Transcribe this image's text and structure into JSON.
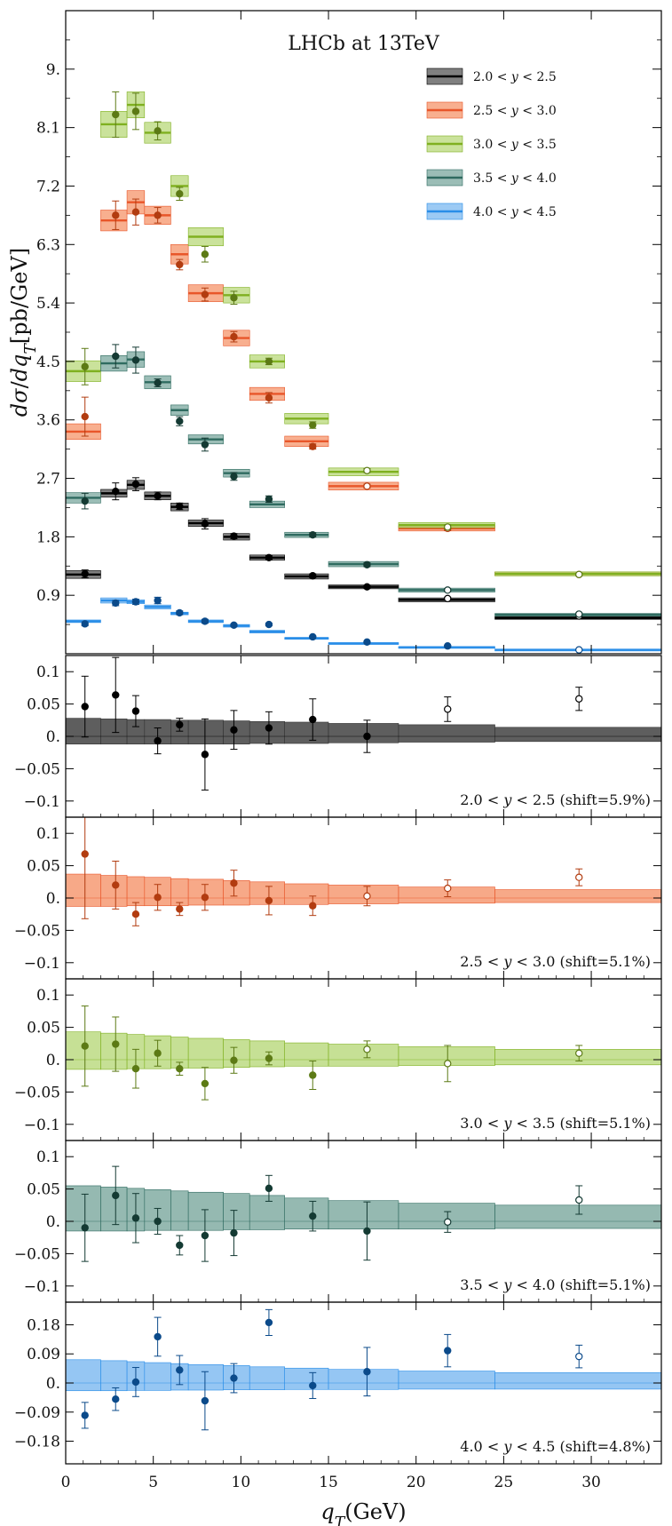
{
  "chart_data": {
    "type": "scatter",
    "title": "LHCb at 13TeV",
    "xlabel": "q_T(GeV)",
    "xlim": [
      0,
      34
    ],
    "xticks": [
      0,
      5,
      10,
      15,
      20,
      25,
      30
    ],
    "bin_edges": [
      0,
      2,
      3.5,
      4.5,
      6,
      7,
      9,
      10.5,
      12.5,
      15,
      19,
      24.5,
      34
    ],
    "bin_points": [
      1.1,
      2.85,
      4.0,
      5.25,
      6.5,
      7.95,
      9.6,
      11.6,
      14.1,
      17.2,
      21.8,
      29.3
    ],
    "main": {
      "ylabel": "dσ/dq_T[pb/GeV]",
      "ylim": [
        0,
        9.9
      ],
      "yticks": [
        "0.9",
        "1.8",
        "2.7",
        "3.6",
        "4.5",
        "5.4",
        "6.3",
        "7.2",
        "8.1",
        "9."
      ],
      "ytick_values": [
        0.9,
        1.8,
        2.7,
        3.6,
        4.5,
        5.4,
        6.3,
        7.2,
        8.1,
        9.0
      ]
    },
    "series": [
      {
        "name": "2.0 < y < 2.5",
        "color": "#000000",
        "band_color": "#555555",
        "point_color": "#000000",
        "theory": [
          1.22,
          2.47,
          2.6,
          2.43,
          2.26,
          2.01,
          1.8,
          1.48,
          1.19,
          1.03,
          0.83,
          0.55
        ],
        "band": [
          0.06,
          0.06,
          0.07,
          0.06,
          0.06,
          0.05,
          0.05,
          0.04,
          0.04,
          0.03,
          0.03,
          0.02
        ],
        "data": [
          1.23,
          2.5,
          2.61,
          2.43,
          2.27,
          2.0,
          1.81,
          1.48,
          1.2,
          1.03,
          0.85,
          0.58
        ],
        "err": [
          0.06,
          0.13,
          0.1,
          0.06,
          0.05,
          0.08,
          0.04,
          0.03,
          0.03,
          0.02,
          0.02,
          0.02
        ],
        "open": [
          false,
          false,
          false,
          false,
          false,
          false,
          false,
          false,
          false,
          false,
          true,
          true
        ]
      },
      {
        "name": "2.5 < y < 3.0",
        "color": "#e8562a",
        "band_color": "#f5946a",
        "point_color": "#b23c10",
        "theory": [
          3.42,
          6.67,
          6.95,
          6.75,
          6.15,
          5.55,
          4.86,
          4.0,
          3.27,
          2.58,
          1.93,
          1.23
        ],
        "band": [
          0.12,
          0.16,
          0.18,
          0.14,
          0.15,
          0.13,
          0.12,
          0.1,
          0.08,
          0.06,
          0.04,
          0.03
        ],
        "data": [
          3.65,
          6.75,
          6.8,
          6.75,
          5.99,
          5.53,
          4.88,
          3.94,
          3.19,
          2.58,
          1.93,
          1.22
        ],
        "err": [
          0.3,
          0.22,
          0.2,
          0.12,
          0.08,
          0.1,
          0.08,
          0.08,
          0.04,
          0.03,
          0.03,
          0.02
        ],
        "open": [
          false,
          false,
          false,
          false,
          false,
          false,
          false,
          false,
          false,
          true,
          true,
          true
        ]
      },
      {
        "name": "3.0 < y < 3.5",
        "color": "#7fb020",
        "band_color": "#b8d87a",
        "point_color": "#5c7a15",
        "theory": [
          4.35,
          8.15,
          8.45,
          8.02,
          7.2,
          6.42,
          5.52,
          4.5,
          3.62,
          2.8,
          1.98,
          1.23
        ],
        "band": [
          0.16,
          0.2,
          0.2,
          0.16,
          0.16,
          0.14,
          0.12,
          0.1,
          0.08,
          0.06,
          0.04,
          0.03
        ],
        "data": [
          4.42,
          8.3,
          8.35,
          8.05,
          7.08,
          6.15,
          5.48,
          4.5,
          3.52,
          2.82,
          1.95,
          1.22
        ],
        "err": [
          0.28,
          0.35,
          0.28,
          0.14,
          0.1,
          0.12,
          0.1,
          0.05,
          0.05,
          0.03,
          0.03,
          0.02
        ],
        "open": [
          false,
          false,
          false,
          false,
          false,
          false,
          false,
          false,
          false,
          true,
          true,
          true
        ]
      },
      {
        "name": "3.5 < y < 4.0",
        "color": "#2f6b60",
        "band_color": "#7aa79e",
        "point_color": "#143a33",
        "theory": [
          2.4,
          4.47,
          4.53,
          4.18,
          3.75,
          3.3,
          2.78,
          2.3,
          1.83,
          1.38,
          0.98,
          0.6
        ],
        "band": [
          0.08,
          0.12,
          0.12,
          0.1,
          0.08,
          0.07,
          0.06,
          0.05,
          0.04,
          0.04,
          0.03,
          0.02
        ],
        "data": [
          2.35,
          4.58,
          4.52,
          4.17,
          3.58,
          3.22,
          2.73,
          2.38,
          1.83,
          1.37,
          0.98,
          0.61
        ],
        "err": [
          0.12,
          0.18,
          0.2,
          0.06,
          0.07,
          0.1,
          0.06,
          0.05,
          0.03,
          0.03,
          0.02,
          0.02
        ],
        "open": [
          false,
          false,
          false,
          false,
          false,
          false,
          false,
          false,
          false,
          false,
          true,
          true
        ]
      },
      {
        "name": "4.0 < y < 4.5",
        "color": "#2a8ee8",
        "band_color": "#7bb8f0",
        "point_color": "#0b4a8a",
        "theory": [
          0.5,
          0.82,
          0.8,
          0.72,
          0.62,
          0.5,
          0.43,
          0.34,
          0.24,
          0.16,
          0.1,
          0.06
        ],
        "band": [
          0.02,
          0.04,
          0.03,
          0.03,
          0.02,
          0.02,
          0.02,
          0.02,
          0.01,
          0.01,
          0.01,
          0.01
        ],
        "data": [
          0.46,
          0.78,
          0.8,
          0.82,
          0.63,
          0.5,
          0.44,
          0.45,
          0.26,
          0.18,
          0.12,
          0.06
        ],
        "err": [
          0.03,
          0.04,
          0.04,
          0.05,
          0.03,
          0.03,
          0.02,
          0.02,
          0.01,
          0.01,
          0.01,
          0.01
        ],
        "open": [
          false,
          false,
          false,
          false,
          false,
          false,
          false,
          false,
          false,
          false,
          false,
          true
        ]
      }
    ],
    "residual_panels": [
      {
        "label": "2.0 < y < 2.5 (shift=5.9%)",
        "series_index": 0,
        "ylim": [
          -0.125,
          0.125
        ],
        "yticks": [
          "0.1",
          "0.05",
          "0.",
          "−0.05",
          "−0.1"
        ],
        "ytick_values": [
          0.1,
          0.05,
          0,
          -0.05,
          -0.1
        ],
        "band_lo": [
          -0.012,
          -0.012,
          -0.012,
          -0.012,
          -0.012,
          -0.012,
          -0.012,
          -0.011,
          -0.011,
          -0.01,
          -0.009,
          -0.008
        ],
        "band_hi": [
          0.028,
          0.027,
          0.026,
          0.026,
          0.025,
          0.025,
          0.024,
          0.023,
          0.022,
          0.02,
          0.018,
          0.014
        ],
        "values": [
          0.046,
          0.064,
          0.039,
          -0.007,
          0.018,
          -0.028,
          0.01,
          0.013,
          0.026,
          0.0,
          0.042,
          0.058
        ],
        "err": [
          0.047,
          0.058,
          0.024,
          0.02,
          0.01,
          0.055,
          0.03,
          0.025,
          0.032,
          0.025,
          0.019,
          0.018
        ],
        "open": [
          false,
          false,
          false,
          false,
          false,
          false,
          false,
          false,
          false,
          false,
          true,
          true
        ]
      },
      {
        "label": "2.5 < y < 3.0 (shift=5.1%)",
        "series_index": 1,
        "ylim": [
          -0.125,
          0.125
        ],
        "yticks": [
          "0.1",
          "0.05",
          "0.",
          "−0.05",
          "−0.1"
        ],
        "ytick_values": [
          0.1,
          0.05,
          0,
          -0.05,
          -0.1
        ],
        "band_lo": [
          -0.013,
          -0.013,
          -0.012,
          -0.012,
          -0.012,
          -0.011,
          -0.011,
          -0.01,
          -0.01,
          -0.009,
          -0.008,
          -0.007
        ],
        "band_hi": [
          0.037,
          0.035,
          0.033,
          0.032,
          0.03,
          0.029,
          0.027,
          0.025,
          0.022,
          0.02,
          0.017,
          0.013
        ],
        "values": [
          0.068,
          0.02,
          -0.025,
          0.001,
          -0.017,
          0.001,
          0.023,
          -0.004,
          -0.012,
          0.003,
          0.015,
          0.032
        ],
        "err": [
          0.1,
          0.037,
          0.018,
          0.02,
          0.01,
          0.02,
          0.02,
          0.022,
          0.015,
          0.015,
          0.013,
          0.013
        ],
        "open": [
          false,
          false,
          false,
          false,
          false,
          false,
          false,
          false,
          false,
          true,
          true,
          true
        ]
      },
      {
        "label": "3.0 < y < 3.5 (shift=5.1%)",
        "series_index": 2,
        "ylim": [
          -0.125,
          0.125
        ],
        "yticks": [
          "0.1",
          "0.05",
          "0.",
          "−0.05",
          "−0.1"
        ],
        "ytick_values": [
          0.1,
          0.05,
          0,
          -0.05,
          -0.1
        ],
        "band_lo": [
          -0.015,
          -0.015,
          -0.014,
          -0.014,
          -0.013,
          -0.013,
          -0.012,
          -0.011,
          -0.01,
          -0.01,
          -0.009,
          -0.008
        ],
        "band_hi": [
          0.043,
          0.041,
          0.039,
          0.037,
          0.035,
          0.033,
          0.031,
          0.029,
          0.026,
          0.024,
          0.02,
          0.016
        ],
        "values": [
          0.021,
          0.024,
          -0.014,
          0.01,
          -0.014,
          -0.037,
          -0.001,
          0.002,
          -0.024,
          0.016,
          -0.006,
          0.01
        ],
        "err": [
          0.062,
          0.042,
          0.03,
          0.02,
          0.01,
          0.025,
          0.02,
          0.01,
          0.022,
          0.013,
          0.028,
          0.012
        ],
        "open": [
          false,
          false,
          false,
          false,
          false,
          false,
          false,
          false,
          false,
          true,
          true,
          true
        ]
      },
      {
        "label": "3.5 < y < 4.0 (shift=5.1%)",
        "series_index": 3,
        "ylim": [
          -0.125,
          0.125
        ],
        "yticks": [
          "0.1",
          "0.05",
          "0.",
          "−0.05",
          "−0.1"
        ],
        "ytick_values": [
          0.1,
          0.05,
          0,
          -0.05,
          -0.1
        ],
        "band_lo": [
          -0.015,
          -0.015,
          -0.015,
          -0.014,
          -0.014,
          -0.014,
          -0.013,
          -0.013,
          -0.012,
          -0.012,
          -0.012,
          -0.011
        ],
        "band_hi": [
          0.055,
          0.053,
          0.051,
          0.049,
          0.047,
          0.045,
          0.043,
          0.04,
          0.036,
          0.032,
          0.028,
          0.025
        ],
        "values": [
          -0.01,
          0.04,
          0.005,
          0.0,
          -0.037,
          -0.022,
          -0.018,
          0.051,
          0.008,
          -0.015,
          -0.001,
          0.033
        ],
        "err": [
          0.052,
          0.045,
          0.038,
          0.02,
          0.015,
          0.04,
          0.035,
          0.02,
          0.023,
          0.045,
          0.016,
          0.022
        ],
        "open": [
          false,
          false,
          false,
          false,
          false,
          false,
          false,
          false,
          false,
          false,
          true,
          true
        ]
      },
      {
        "label": "4.0 < y < 4.5 (shift=4.8%)",
        "series_index": 4,
        "ylim": [
          -0.25,
          0.25
        ],
        "yticks": [
          "0.18",
          "0.09",
          "0.",
          "−0.09",
          "−0.18"
        ],
        "ytick_values": [
          0.18,
          0.09,
          0,
          -0.09,
          -0.18
        ],
        "band_lo": [
          -0.024,
          -0.024,
          -0.023,
          -0.023,
          -0.022,
          -0.022,
          -0.021,
          -0.021,
          -0.02,
          -0.02,
          -0.019,
          -0.019
        ],
        "band_hi": [
          0.072,
          0.069,
          0.066,
          0.063,
          0.06,
          0.057,
          0.054,
          0.05,
          0.046,
          0.042,
          0.037,
          0.032
        ],
        "values": [
          -0.1,
          -0.05,
          0.003,
          0.143,
          0.04,
          -0.055,
          0.015,
          0.187,
          -0.008,
          0.035,
          0.1,
          0.082
        ],
        "err": [
          0.04,
          0.035,
          0.045,
          0.06,
          0.045,
          0.09,
          0.045,
          0.04,
          0.04,
          0.075,
          0.05,
          0.035
        ],
        "open": [
          false,
          false,
          false,
          false,
          false,
          false,
          false,
          false,
          false,
          false,
          false,
          true
        ]
      }
    ]
  }
}
